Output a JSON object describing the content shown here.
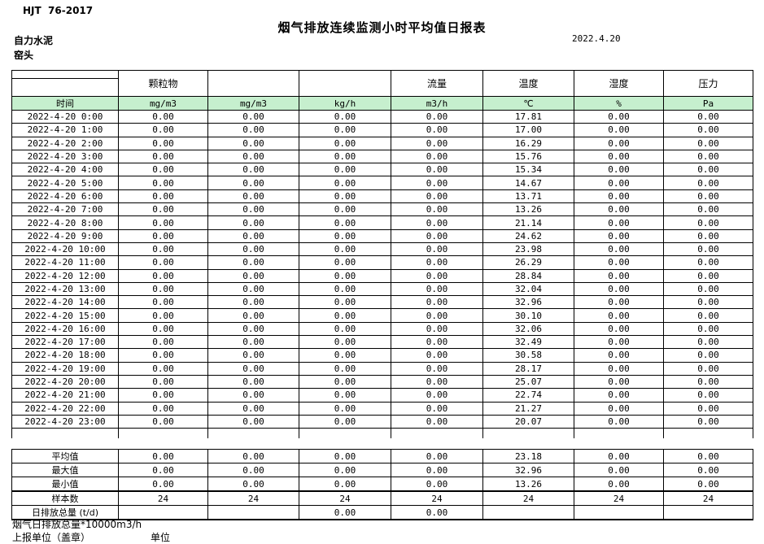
{
  "page": {
    "doc_code": "HJT  76-2017",
    "title": "烟气排放连续监测小时平均值日报表",
    "date": "2022.4.20",
    "company": "自力水泥",
    "station": "窑头"
  },
  "colors": {
    "unit_row_bg": "#c6efce",
    "border": "#000000"
  },
  "table": {
    "group_headers": [
      "颗粒物",
      "",
      "",
      "流量",
      "温度",
      "湿度",
      "压力"
    ],
    "unit_row": {
      "time_label": "时间",
      "units": [
        "mg/m3",
        "mg/m3",
        "kg/h",
        "m3/h",
        "℃",
        "%",
        "Pa"
      ]
    },
    "rows": [
      {
        "time": "2022-4-20 0:00",
        "values": [
          "0.00",
          "0.00",
          "0.00",
          "0.00",
          "17.81",
          "0.00",
          "0.00"
        ]
      },
      {
        "time": "2022-4-20 1:00",
        "values": [
          "0.00",
          "0.00",
          "0.00",
          "0.00",
          "17.00",
          "0.00",
          "0.00"
        ]
      },
      {
        "time": "2022-4-20 2:00",
        "values": [
          "0.00",
          "0.00",
          "0.00",
          "0.00",
          "16.29",
          "0.00",
          "0.00"
        ]
      },
      {
        "time": "2022-4-20 3:00",
        "values": [
          "0.00",
          "0.00",
          "0.00",
          "0.00",
          "15.76",
          "0.00",
          "0.00"
        ]
      },
      {
        "time": "2022-4-20 4:00",
        "values": [
          "0.00",
          "0.00",
          "0.00",
          "0.00",
          "15.34",
          "0.00",
          "0.00"
        ]
      },
      {
        "time": "2022-4-20 5:00",
        "values": [
          "0.00",
          "0.00",
          "0.00",
          "0.00",
          "14.67",
          "0.00",
          "0.00"
        ]
      },
      {
        "time": "2022-4-20 6:00",
        "values": [
          "0.00",
          "0.00",
          "0.00",
          "0.00",
          "13.71",
          "0.00",
          "0.00"
        ]
      },
      {
        "time": "2022-4-20 7:00",
        "values": [
          "0.00",
          "0.00",
          "0.00",
          "0.00",
          "13.26",
          "0.00",
          "0.00"
        ]
      },
      {
        "time": "2022-4-20 8:00",
        "values": [
          "0.00",
          "0.00",
          "0.00",
          "0.00",
          "21.14",
          "0.00",
          "0.00"
        ]
      },
      {
        "time": "2022-4-20 9:00",
        "values": [
          "0.00",
          "0.00",
          "0.00",
          "0.00",
          "24.62",
          "0.00",
          "0.00"
        ]
      },
      {
        "time": "2022-4-20 10:00",
        "values": [
          "0.00",
          "0.00",
          "0.00",
          "0.00",
          "23.98",
          "0.00",
          "0.00"
        ]
      },
      {
        "time": "2022-4-20 11:00",
        "values": [
          "0.00",
          "0.00",
          "0.00",
          "0.00",
          "26.29",
          "0.00",
          "0.00"
        ]
      },
      {
        "time": "2022-4-20 12:00",
        "values": [
          "0.00",
          "0.00",
          "0.00",
          "0.00",
          "28.84",
          "0.00",
          "0.00"
        ]
      },
      {
        "time": "2022-4-20 13:00",
        "values": [
          "0.00",
          "0.00",
          "0.00",
          "0.00",
          "32.04",
          "0.00",
          "0.00"
        ]
      },
      {
        "time": "2022-4-20 14:00",
        "values": [
          "0.00",
          "0.00",
          "0.00",
          "0.00",
          "32.96",
          "0.00",
          "0.00"
        ]
      },
      {
        "time": "2022-4-20 15:00",
        "values": [
          "0.00",
          "0.00",
          "0.00",
          "0.00",
          "30.10",
          "0.00",
          "0.00"
        ]
      },
      {
        "time": "2022-4-20 16:00",
        "values": [
          "0.00",
          "0.00",
          "0.00",
          "0.00",
          "32.06",
          "0.00",
          "0.00"
        ]
      },
      {
        "time": "2022-4-20 17:00",
        "values": [
          "0.00",
          "0.00",
          "0.00",
          "0.00",
          "32.49",
          "0.00",
          "0.00"
        ]
      },
      {
        "time": "2022-4-20 18:00",
        "values": [
          "0.00",
          "0.00",
          "0.00",
          "0.00",
          "30.58",
          "0.00",
          "0.00"
        ]
      },
      {
        "time": "2022-4-20 19:00",
        "values": [
          "0.00",
          "0.00",
          "0.00",
          "0.00",
          "28.17",
          "0.00",
          "0.00"
        ]
      },
      {
        "time": "2022-4-20 20:00",
        "values": [
          "0.00",
          "0.00",
          "0.00",
          "0.00",
          "25.07",
          "0.00",
          "0.00"
        ]
      },
      {
        "time": "2022-4-20 21:00",
        "values": [
          "0.00",
          "0.00",
          "0.00",
          "0.00",
          "22.74",
          "0.00",
          "0.00"
        ]
      },
      {
        "time": "2022-4-20 22:00",
        "values": [
          "0.00",
          "0.00",
          "0.00",
          "0.00",
          "21.27",
          "0.00",
          "0.00"
        ]
      },
      {
        "time": "2022-4-20 23:00",
        "values": [
          "0.00",
          "0.00",
          "0.00",
          "0.00",
          "20.07",
          "0.00",
          "0.00"
        ]
      }
    ]
  },
  "summary": {
    "rows": [
      {
        "label": "平均值",
        "values": [
          "0.00",
          "0.00",
          "0.00",
          "0.00",
          "23.18",
          "0.00",
          "0.00"
        ]
      },
      {
        "label": "最大值",
        "values": [
          "0.00",
          "0.00",
          "0.00",
          "0.00",
          "32.96",
          "0.00",
          "0.00"
        ]
      },
      {
        "label": "最小值",
        "values": [
          "0.00",
          "0.00",
          "0.00",
          "0.00",
          "13.26",
          "0.00",
          "0.00"
        ]
      },
      {
        "label": "样本数",
        "values": [
          "24",
          "24",
          "24",
          "24",
          "24",
          "24",
          "24"
        ]
      },
      {
        "label": "日排放总量 (t/d)",
        "values": [
          "",
          "",
          "0.00",
          "0.00",
          "",
          "",
          ""
        ]
      }
    ]
  },
  "footer": {
    "total_line": "烟气日排放总量*10000m3/h",
    "report_unit_line": "上报单位（盖章）",
    "unit_label": "单位"
  }
}
